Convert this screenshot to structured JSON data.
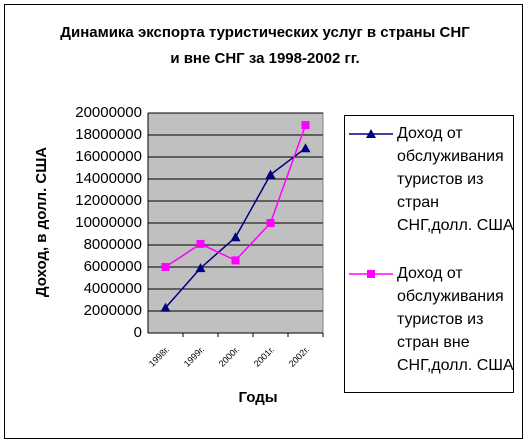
{
  "chart_data": {
    "type": "line",
    "title": "Динамика экспорта туристических услуг в страны СНГ и вне СНГ за 1998-2002 гг.",
    "x_label": "Годы",
    "y_label": "Доход, в долл. США",
    "categories": [
      "1998г.",
      "1999г.",
      "2000г.",
      "2001г.",
      "2002г."
    ],
    "series": [
      {
        "name": "Доход от обслуживания туристов из стран СНГ,долл. США",
        "color": "#000080",
        "marker": "triangle",
        "values": [
          2300000,
          5900000,
          8700000,
          14400000,
          16800000
        ]
      },
      {
        "name": "Доход от обслуживания туристов из стран вне СНГ,долл. США",
        "color": "#ff00ff",
        "marker": "square",
        "values": [
          6000000,
          8100000,
          6600000,
          10000000,
          18900000
        ]
      }
    ],
    "ylim": [
      0,
      20000000
    ],
    "yticks": [
      0,
      2000000,
      4000000,
      6000000,
      8000000,
      10000000,
      12000000,
      14000000,
      16000000,
      18000000,
      20000000
    ],
    "grid": true,
    "legend": "right"
  }
}
